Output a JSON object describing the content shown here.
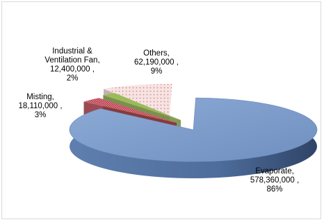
{
  "chart_data": {
    "type": "pie",
    "title": "",
    "style": "3d-exploded",
    "slices": [
      {
        "label": "Evaporate",
        "value": 578360000,
        "value_text": "578,360,000 ,",
        "percent": 86,
        "percent_text": "86%",
        "color": "#7A9ACB"
      },
      {
        "label": "Misting",
        "value": 18110000,
        "value_text": "18,110,000 ,",
        "percent": 3,
        "percent_text": "3%",
        "color": "#C0504D"
      },
      {
        "label": "Industrial & Ventilation Fan",
        "value": 12400000,
        "value_text": "12,400,000 ,",
        "percent": 2,
        "percent_text": "2%",
        "color": "#9BBB59"
      },
      {
        "label": "Others",
        "value": 62190000,
        "value_text": "62,190,000 ,",
        "percent": 9,
        "percent_text": "9%",
        "color": "#E6B9B8"
      }
    ],
    "labels": {
      "evaporate": [
        "Evaporate,",
        "578,360,000 ,",
        "86%"
      ],
      "misting": [
        "Misting,",
        "18,110,000 ,",
        "3%"
      ],
      "industrial": [
        "Industrial &",
        "Ventilation Fan,",
        "12,400,000 ,",
        "2%"
      ],
      "others": [
        "Others,",
        "62,190,000 ,",
        "9%"
      ]
    },
    "legend": "none"
  }
}
